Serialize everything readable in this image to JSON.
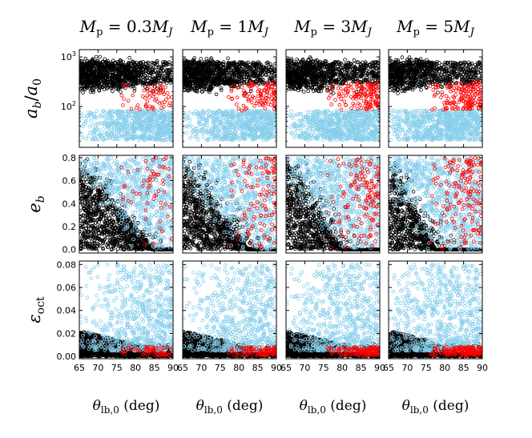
{
  "chart_data": {
    "type": "scatter",
    "grid": false,
    "columns": [
      {
        "title": "M_p = 0.3M_J",
        "title_parts": [
          "M",
          "p",
          " = 0.3",
          "M",
          "J"
        ],
        "mp": 0.3
      },
      {
        "title": "M_p = 1M_J",
        "title_parts": [
          "M",
          "p",
          " = 1",
          "M",
          "J"
        ],
        "mp": 1
      },
      {
        "title": "M_p = 3M_J",
        "title_parts": [
          "M",
          "p",
          " = 3",
          "M",
          "J"
        ],
        "mp": 3
      },
      {
        "title": "M_p = 5M_J",
        "title_parts": [
          "M",
          "p",
          " = 5",
          "M",
          "J"
        ],
        "mp": 5
      }
    ],
    "x_axis": {
      "label": "θlb,0 (deg)",
      "label_parts": [
        "θ",
        "lb,0",
        " (deg)"
      ],
      "range": [
        65,
        90
      ],
      "ticks": [
        65,
        70,
        75,
        80,
        85,
        90
      ],
      "tick_labels": [
        "65",
        "70",
        "75",
        "80",
        "85",
        "90"
      ]
    },
    "rows": [
      {
        "name": "ab/a0",
        "ylabel_parts": [
          "a",
          "b",
          "/",
          "a",
          "0"
        ],
        "scale": "log",
        "range": [
          15,
          1400
        ],
        "ticks": [
          100,
          1000
        ],
        "tick_labels": [
          {
            "base": "10",
            "exp": "2"
          },
          {
            "base": "10",
            "exp": "3"
          }
        ]
      },
      {
        "name": "e_b",
        "ylabel_parts": [
          "e",
          "b"
        ],
        "scale": "linear",
        "range": [
          -0.03,
          0.82
        ],
        "ticks": [
          0.0,
          0.2,
          0.4,
          0.6,
          0.8
        ],
        "tick_labels": [
          "0.0",
          "0.2",
          "0.4",
          "0.6",
          "0.8"
        ]
      },
      {
        "name": "ε_oct",
        "ylabel_parts": [
          "ε",
          "oct"
        ],
        "scale": "linear",
        "range": [
          -0.002,
          0.083
        ],
        "ticks": [
          0.0,
          0.02,
          0.04,
          0.06,
          0.08
        ],
        "tick_labels": [
          "0.00",
          "0.02",
          "0.04",
          "0.06",
          "0.08"
        ]
      }
    ],
    "series": [
      {
        "name": "class-black",
        "color": "#000000",
        "marker": "open-circle"
      },
      {
        "name": "class-lightblue",
        "color": "#87CEEB",
        "marker": "open-circle"
      },
      {
        "name": "class-red",
        "color": "#FF0000",
        "marker": "open-circle"
      }
    ],
    "description_of_populations": {
      "black": "fills the ab/a0 range roughly 300–1000 at all θ; small e_b and small ε_oct at low θ (lower-left wedge)",
      "lightblue": "ab/a0 roughly 20–100; upper-left region in e_b; spread over ε_oct 0.01–0.08",
      "red": "high θ (≳80 deg); ab/a0 ~100–300; high e_b; ε_oct ≲ 0.01; grows with planet mass"
    }
  },
  "colors": {
    "black": "#000000",
    "lightblue": "#87CEEB",
    "red": "#FF0000"
  }
}
